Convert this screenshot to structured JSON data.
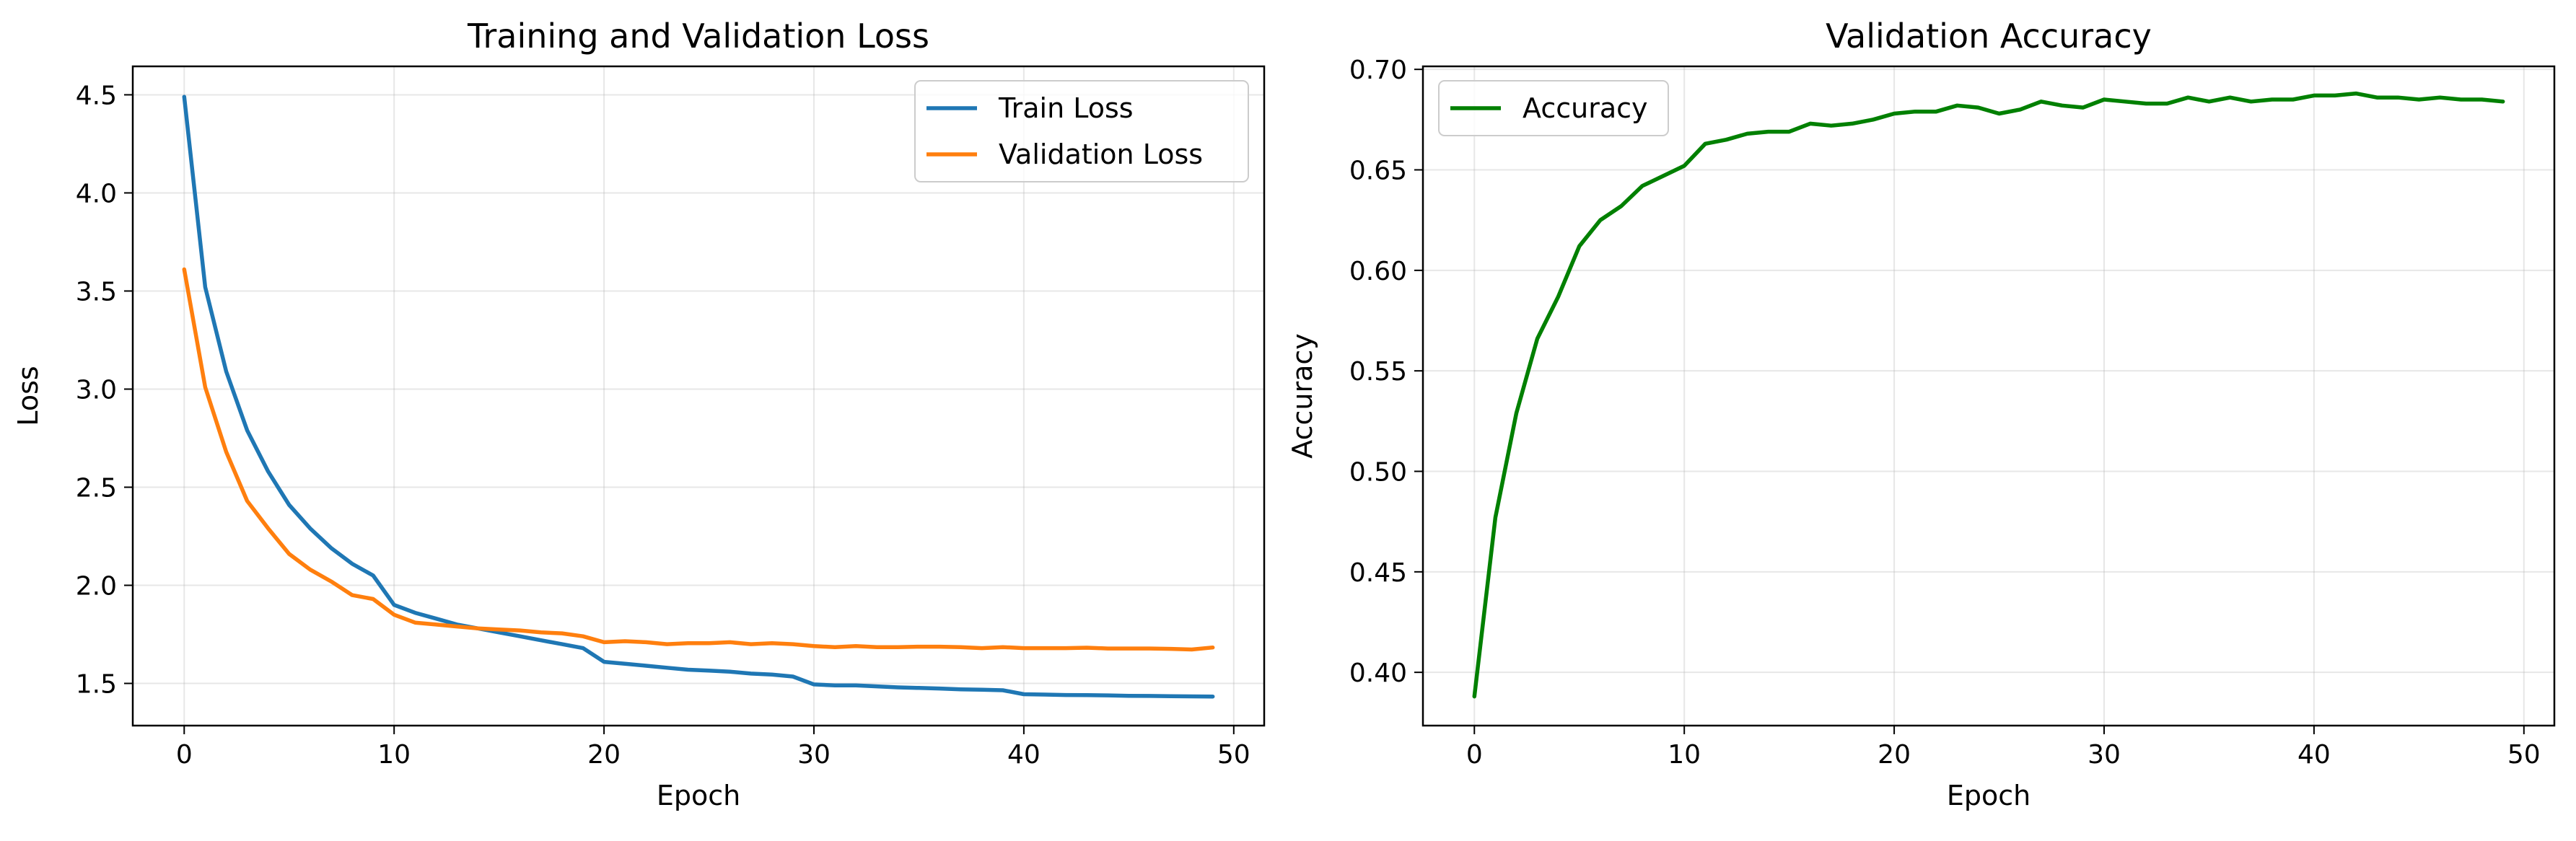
{
  "chart_data": [
    {
      "type": "line",
      "title": "Training and Validation Loss",
      "xlabel": "Epoch",
      "ylabel": "Loss",
      "xlim": [
        -2.45,
        51.45
      ],
      "ylim": [
        1.285,
        4.645
      ],
      "xticks": [
        0,
        10,
        20,
        30,
        40,
        50
      ],
      "yticks": [
        1.5,
        2.0,
        2.5,
        3.0,
        3.5,
        4.0,
        4.5
      ],
      "ytick_format": 1,
      "grid": true,
      "legend": "top-right",
      "x": [
        0,
        1,
        2,
        3,
        4,
        5,
        6,
        7,
        8,
        9,
        10,
        11,
        12,
        13,
        14,
        15,
        16,
        17,
        18,
        19,
        20,
        21,
        22,
        23,
        24,
        25,
        26,
        27,
        28,
        29,
        30,
        31,
        32,
        33,
        34,
        35,
        36,
        37,
        38,
        39,
        40,
        41,
        42,
        43,
        44,
        45,
        46,
        47,
        48,
        49
      ],
      "series": [
        {
          "name": "Train Loss",
          "color": "#1f77b4",
          "values": [
            4.49,
            3.52,
            3.09,
            2.79,
            2.58,
            2.41,
            2.29,
            2.19,
            2.11,
            2.05,
            1.9,
            1.86,
            1.83,
            1.8,
            1.78,
            1.76,
            1.74,
            1.72,
            1.7,
            1.68,
            1.61,
            1.6,
            1.59,
            1.58,
            1.57,
            1.565,
            1.56,
            1.55,
            1.545,
            1.535,
            1.495,
            1.49,
            1.49,
            1.485,
            1.48,
            1.477,
            1.474,
            1.47,
            1.468,
            1.465,
            1.445,
            1.443,
            1.441,
            1.44,
            1.439,
            1.437,
            1.436,
            1.435,
            1.434,
            1.433
          ]
        },
        {
          "name": "Validation Loss",
          "color": "#ff7f0e",
          "values": [
            3.61,
            3.01,
            2.68,
            2.43,
            2.29,
            2.16,
            2.08,
            2.02,
            1.95,
            1.93,
            1.85,
            1.81,
            1.8,
            1.79,
            1.78,
            1.775,
            1.77,
            1.76,
            1.755,
            1.74,
            1.71,
            1.715,
            1.71,
            1.7,
            1.705,
            1.705,
            1.71,
            1.7,
            1.705,
            1.7,
            1.69,
            1.685,
            1.69,
            1.685,
            1.685,
            1.687,
            1.687,
            1.685,
            1.68,
            1.685,
            1.68,
            1.68,
            1.68,
            1.682,
            1.678,
            1.678,
            1.678,
            1.676,
            1.673,
            1.683
          ]
        }
      ]
    },
    {
      "type": "line",
      "title": "Validation Accuracy",
      "xlabel": "Epoch",
      "ylabel": "Accuracy",
      "xlim": [
        -2.45,
        51.45
      ],
      "ylim": [
        0.3735,
        0.7015
      ],
      "xticks": [
        0,
        10,
        20,
        30,
        40,
        50
      ],
      "yticks": [
        0.4,
        0.45,
        0.5,
        0.55,
        0.6,
        0.65,
        0.7
      ],
      "ytick_format": 2,
      "grid": true,
      "legend": "top-left",
      "x": [
        0,
        1,
        2,
        3,
        4,
        5,
        6,
        7,
        8,
        9,
        10,
        11,
        12,
        13,
        14,
        15,
        16,
        17,
        18,
        19,
        20,
        21,
        22,
        23,
        24,
        25,
        26,
        27,
        28,
        29,
        30,
        31,
        32,
        33,
        34,
        35,
        36,
        37,
        38,
        39,
        40,
        41,
        42,
        43,
        44,
        45,
        46,
        47,
        48,
        49
      ],
      "series": [
        {
          "name": "Accuracy",
          "color": "#008000",
          "values": [
            0.388,
            0.477,
            0.529,
            0.566,
            0.587,
            0.612,
            0.625,
            0.632,
            0.642,
            0.647,
            0.652,
            0.663,
            0.665,
            0.668,
            0.669,
            0.669,
            0.673,
            0.672,
            0.673,
            0.675,
            0.678,
            0.679,
            0.679,
            0.682,
            0.681,
            0.678,
            0.68,
            0.684,
            0.682,
            0.681,
            0.685,
            0.684,
            0.683,
            0.683,
            0.686,
            0.684,
            0.686,
            0.684,
            0.685,
            0.685,
            0.687,
            0.687,
            0.688,
            0.686,
            0.686,
            0.685,
            0.686,
            0.685,
            0.685,
            0.684
          ]
        }
      ]
    }
  ]
}
